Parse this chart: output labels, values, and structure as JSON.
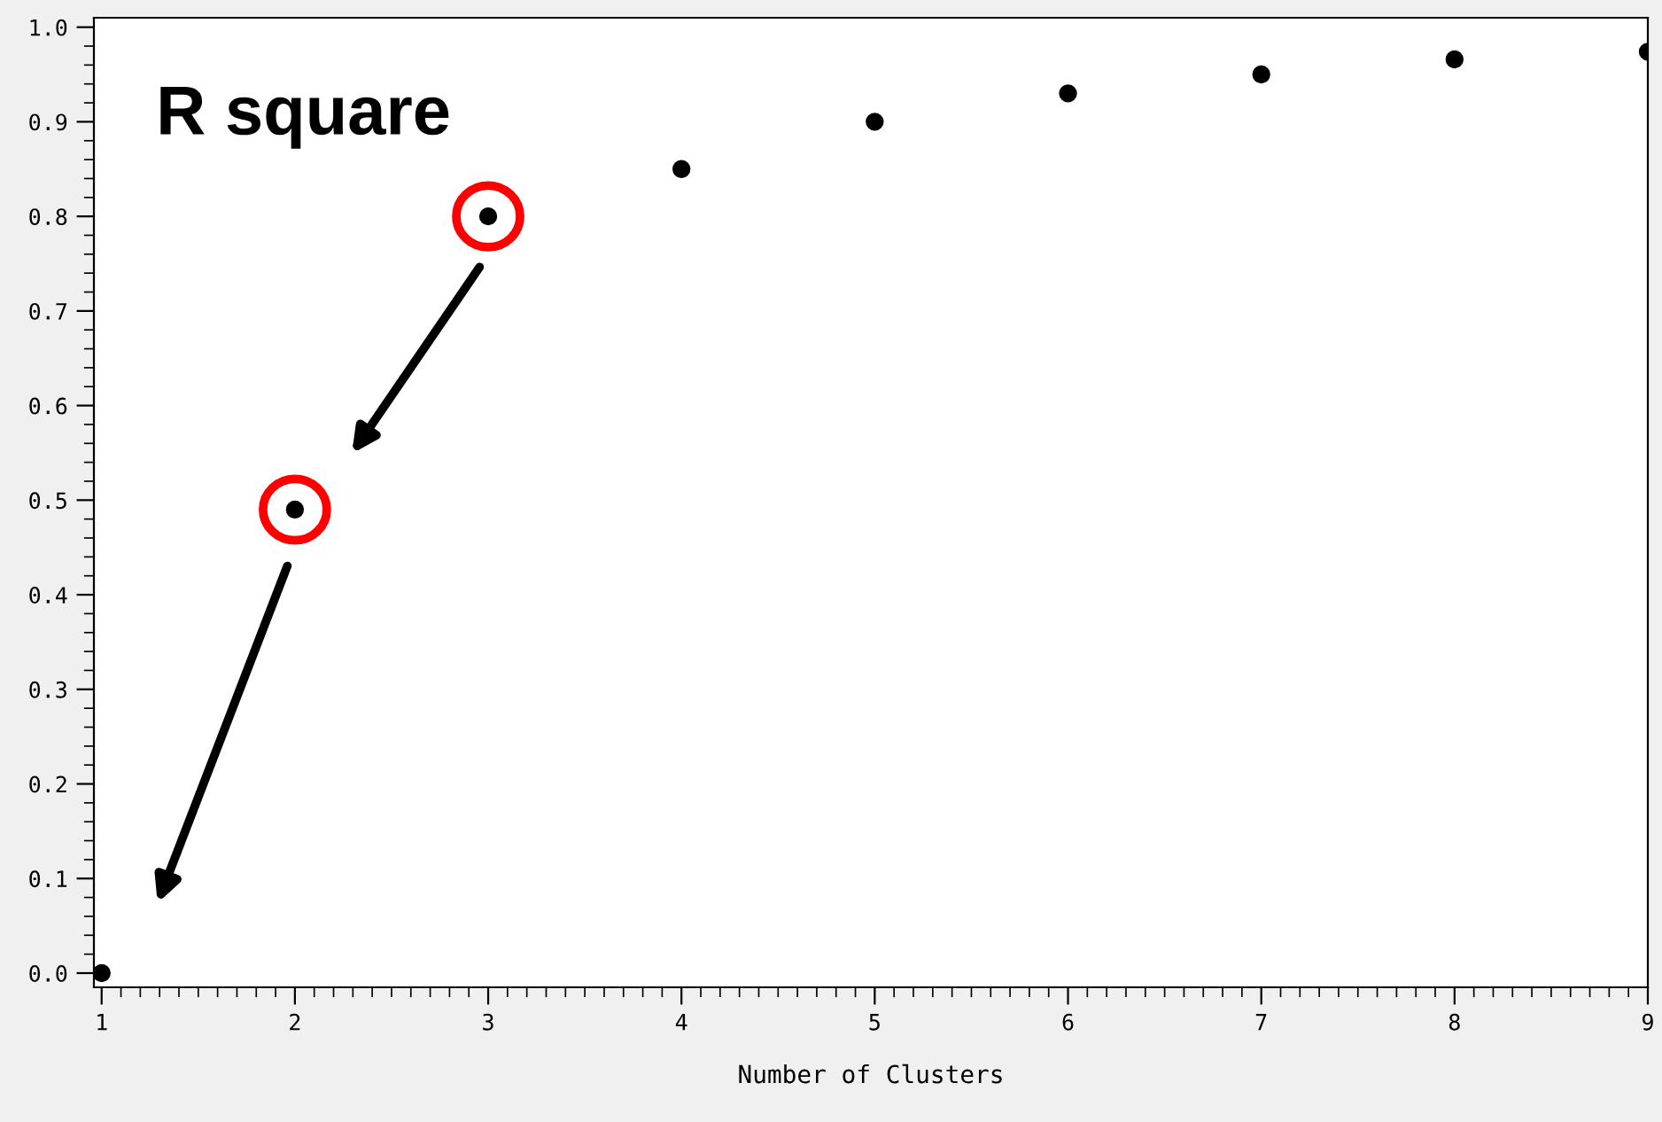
{
  "chart_data": {
    "type": "scatter",
    "xlabel": "Number of Clusters",
    "annotations": [
      "R square"
    ],
    "x": [
      1,
      2,
      3,
      4,
      5,
      6,
      7,
      8,
      9
    ],
    "values": [
      0.0,
      0.49,
      0.8,
      0.85,
      0.9,
      0.93,
      0.95,
      0.966,
      0.974
    ],
    "color": "#000000",
    "marker": "circle",
    "xlim": [
      0.96,
      9.0
    ],
    "xticks": [
      1,
      2,
      3,
      4,
      5,
      6,
      7,
      8,
      9
    ],
    "ylim": [
      -0.015,
      1.01
    ],
    "yticks": [
      {
        "value": 0.0,
        "label": "0.0"
      },
      0.1,
      0.2,
      0.3,
      0.4,
      0.5,
      0.6,
      0.7,
      0.8,
      0.9,
      {
        "value": 1.0,
        "label": "1.0"
      }
    ],
    "grid": false,
    "legend": false
  }
}
